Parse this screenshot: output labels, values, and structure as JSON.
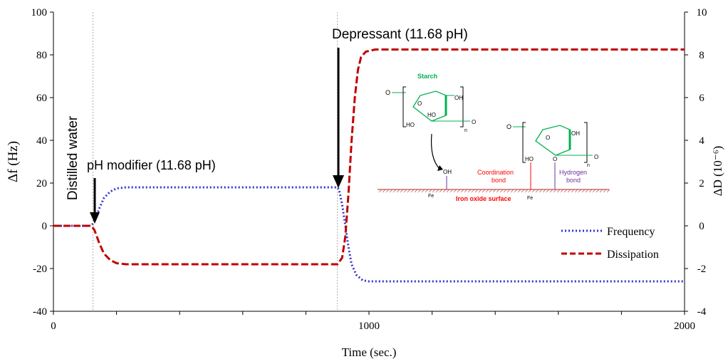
{
  "chart_data": {
    "type": "line",
    "xlabel": "Time (sec.)",
    "ylabel_left": "Δf (Hz)",
    "ylabel_right": "ΔD (10⁻⁶)",
    "xlim": [
      0,
      2000
    ],
    "ylim_left": [
      -40,
      100
    ],
    "ylim_right": [
      -4,
      10
    ],
    "x_ticks": [
      "0",
      "1000",
      "2000"
    ],
    "y_left_ticks": [
      "100",
      "80",
      "60",
      "40",
      "20",
      "0",
      "-20",
      "-40"
    ],
    "y_right_ticks": [
      "10",
      "8",
      "6",
      "4",
      "2",
      "0",
      "-2",
      "-4"
    ],
    "grid": false,
    "legend_position": "bottom-right",
    "series": [
      {
        "name": "Frequency",
        "axis": "left",
        "color": "#3333cc",
        "style": "dotted",
        "points": [
          [
            0,
            0
          ],
          [
            120,
            0
          ],
          [
            130,
            2
          ],
          [
            145,
            8
          ],
          [
            160,
            13
          ],
          [
            180,
            16
          ],
          [
            200,
            17.5
          ],
          [
            230,
            18
          ],
          [
            900,
            18
          ],
          [
            905,
            17
          ],
          [
            915,
            10
          ],
          [
            925,
            0
          ],
          [
            935,
            -10
          ],
          [
            945,
            -18
          ],
          [
            960,
            -23
          ],
          [
            980,
            -25.5
          ],
          [
            1000,
            -26
          ],
          [
            2000,
            -26
          ]
        ]
      },
      {
        "name": "Dissipation",
        "axis": "right",
        "color": "#c00000",
        "style": "dashed",
        "points": [
          [
            0,
            0
          ],
          [
            120,
            0
          ],
          [
            130,
            -0.2
          ],
          [
            145,
            -0.8
          ],
          [
            160,
            -1.3
          ],
          [
            180,
            -1.6
          ],
          [
            200,
            -1.75
          ],
          [
            230,
            -1.8
          ],
          [
            900,
            -1.8
          ],
          [
            915,
            -1.5
          ],
          [
            925,
            -0.5
          ],
          [
            935,
            1.5
          ],
          [
            945,
            4
          ],
          [
            955,
            6
          ],
          [
            965,
            7.3
          ],
          [
            975,
            7.9
          ],
          [
            990,
            8.15
          ],
          [
            1020,
            8.25
          ],
          [
            2000,
            8.25
          ]
        ]
      }
    ],
    "vertical_markers": [
      125,
      900
    ],
    "annotations": {
      "distilled_water": "Distilled water",
      "ph_modifier": "pH modifier (11.68 pH)",
      "depressant": "Depressant (11.68 pH)"
    }
  },
  "inset": {
    "starch_label": "Starch",
    "iron_oxide_label": "Iron oxide surface",
    "coordination_label_1": "Coordination",
    "coordination_label_2": "bond",
    "hydrogen_label_1": "Hydrogen",
    "hydrogen_label_2": "bond",
    "o": "O",
    "oh": "OH",
    "ho": "HO",
    "n": "n",
    "fe": "Fe",
    "colors": {
      "starch": "#00b050",
      "coordination": "#ff0000",
      "hydrogen": "#7030a0",
      "surface": "#c0504d"
    }
  }
}
